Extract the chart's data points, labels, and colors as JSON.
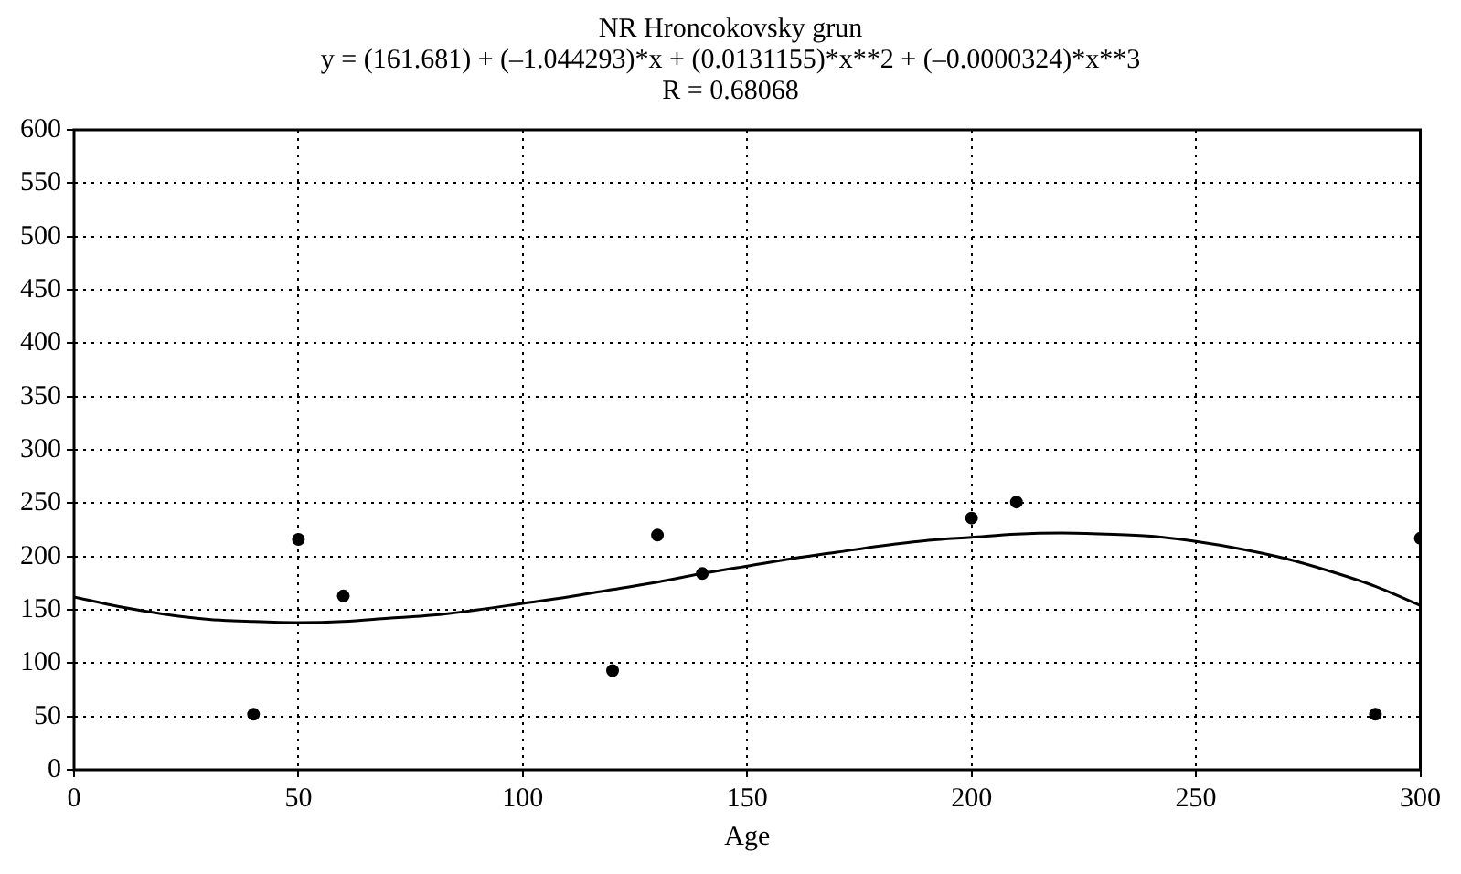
{
  "chart_data": {
    "type": "scatter",
    "title": "NR Hroncokovsky grun",
    "subtitle": "y = (161.681) + (–1.044293)*x + (0.0131155)*x**2 + (–0.0000324)*x**3",
    "annotations": [
      "R = 0.68068"
    ],
    "xlabel": "Age",
    "series": [
      {
        "color": "#000000",
        "marker": "circle",
        "x": [
          40,
          50,
          60,
          120,
          130,
          140,
          200,
          210,
          290,
          300
        ],
        "values": [
          52,
          216,
          163,
          93,
          220,
          184,
          236,
          251,
          52,
          217
        ]
      },
      {
        "type": "line",
        "color": "#000000",
        "marker": "none",
        "x": [
          0,
          10,
          20,
          30,
          40,
          50,
          60,
          70,
          80,
          90,
          100,
          110,
          120,
          130,
          140,
          150,
          160,
          170,
          180,
          190,
          200,
          210,
          220,
          230,
          240,
          250,
          260,
          270,
          280,
          290,
          300
        ],
        "values": [
          162,
          153,
          146,
          141,
          139,
          138,
          139,
          142,
          145,
          150,
          156,
          162,
          169,
          176,
          184,
          191,
          198,
          204,
          210,
          215,
          218,
          221,
          222,
          221,
          219,
          214,
          207,
          198,
          186,
          172,
          154
        ]
      }
    ],
    "xlim": [
      0,
      300
    ],
    "xticks": [
      0,
      50,
      100,
      150,
      200,
      250,
      300
    ],
    "ylim": [
      0,
      600
    ],
    "yticks": [
      0,
      50,
      100,
      150,
      200,
      250,
      300,
      350,
      400,
      450,
      500,
      550,
      600
    ],
    "grid": true,
    "legend": false
  }
}
